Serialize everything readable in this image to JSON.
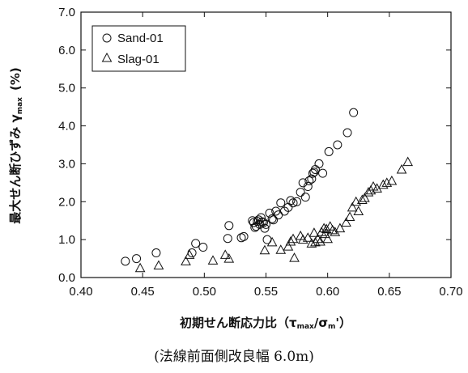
{
  "chart_data": {
    "type": "scatter",
    "xlabel": "初期せん断応力比（τmax/σm'）",
    "xlabel_parts": {
      "main": "初期せん断応力比（τ",
      "sub1": "max",
      "mid": "/σ",
      "sub2": "m",
      "end": "'）"
    },
    "ylabel": "最大せん断ひずみ γmax (%)",
    "ylabel_parts": {
      "main": "最大せん断ひずみ γ",
      "sub": "max",
      "unit": "(%)"
    },
    "xlim": [
      0.4,
      0.7
    ],
    "ylim": [
      0.0,
      7.0
    ],
    "xticks": [
      "0.40",
      "0.45",
      "0.50",
      "0.55",
      "0.60",
      "0.65",
      "0.70"
    ],
    "yticks": [
      "0.0",
      "1.0",
      "2.0",
      "3.0",
      "4.0",
      "5.0",
      "6.0",
      "7.0"
    ],
    "grid": false,
    "legend_position": "top-left",
    "series": [
      {
        "name": "Sand-01",
        "marker": "circle",
        "points": [
          [
            0.436,
            0.43
          ],
          [
            0.445,
            0.5
          ],
          [
            0.461,
            0.65
          ],
          [
            0.49,
            0.65
          ],
          [
            0.493,
            0.9
          ],
          [
            0.499,
            0.8
          ],
          [
            0.519,
            1.03
          ],
          [
            0.52,
            1.37
          ],
          [
            0.53,
            1.05
          ],
          [
            0.532,
            1.08
          ],
          [
            0.539,
            1.5
          ],
          [
            0.54,
            1.45
          ],
          [
            0.541,
            1.32
          ],
          [
            0.542,
            1.35
          ],
          [
            0.543,
            1.48
          ],
          [
            0.544,
            1.52
          ],
          [
            0.545,
            1.4
          ],
          [
            0.546,
            1.58
          ],
          [
            0.547,
            1.47
          ],
          [
            0.548,
            1.45
          ],
          [
            0.549,
            1.3
          ],
          [
            0.55,
            1.4
          ],
          [
            0.551,
            1.0
          ],
          [
            0.553,
            1.7
          ],
          [
            0.555,
            1.55
          ],
          [
            0.556,
            1.52
          ],
          [
            0.558,
            1.75
          ],
          [
            0.56,
            1.65
          ],
          [
            0.562,
            1.97
          ],
          [
            0.565,
            1.75
          ],
          [
            0.568,
            1.85
          ],
          [
            0.57,
            2.03
          ],
          [
            0.572,
            1.97
          ],
          [
            0.575,
            2.0
          ],
          [
            0.578,
            2.25
          ],
          [
            0.58,
            2.5
          ],
          [
            0.582,
            2.12
          ],
          [
            0.584,
            2.4
          ],
          [
            0.585,
            2.55
          ],
          [
            0.587,
            2.6
          ],
          [
            0.588,
            2.75
          ],
          [
            0.589,
            2.78
          ],
          [
            0.59,
            2.85
          ],
          [
            0.593,
            3.0
          ],
          [
            0.596,
            2.75
          ],
          [
            0.601,
            3.32
          ],
          [
            0.608,
            3.5
          ],
          [
            0.616,
            3.82
          ],
          [
            0.621,
            4.35
          ]
        ]
      },
      {
        "name": "Slag-01",
        "marker": "triangle",
        "points": [
          [
            0.448,
            0.25
          ],
          [
            0.463,
            0.32
          ],
          [
            0.485,
            0.43
          ],
          [
            0.488,
            0.6
          ],
          [
            0.507,
            0.45
          ],
          [
            0.517,
            0.6
          ],
          [
            0.52,
            0.5
          ],
          [
            0.549,
            0.72
          ],
          [
            0.555,
            0.93
          ],
          [
            0.562,
            0.73
          ],
          [
            0.568,
            0.82
          ],
          [
            0.57,
            0.95
          ],
          [
            0.572,
            1.02
          ],
          [
            0.573,
            0.52
          ],
          [
            0.578,
            1.1
          ],
          [
            0.58,
            1.0
          ],
          [
            0.584,
            1.05
          ],
          [
            0.587,
            0.9
          ],
          [
            0.589,
            1.18
          ],
          [
            0.59,
            0.93
          ],
          [
            0.592,
            1.02
          ],
          [
            0.594,
            0.95
          ],
          [
            0.595,
            1.2
          ],
          [
            0.597,
            1.3
          ],
          [
            0.598,
            1.15
          ],
          [
            0.599,
            1.28
          ],
          [
            0.6,
            1.02
          ],
          [
            0.602,
            1.35
          ],
          [
            0.604,
            1.25
          ],
          [
            0.606,
            1.2
          ],
          [
            0.61,
            1.3
          ],
          [
            0.615,
            1.45
          ],
          [
            0.618,
            1.6
          ],
          [
            0.62,
            1.85
          ],
          [
            0.623,
            2.0
          ],
          [
            0.625,
            1.75
          ],
          [
            0.628,
            2.05
          ],
          [
            0.63,
            2.1
          ],
          [
            0.633,
            2.25
          ],
          [
            0.635,
            2.3
          ],
          [
            0.637,
            2.4
          ],
          [
            0.64,
            2.35
          ],
          [
            0.645,
            2.45
          ],
          [
            0.648,
            2.5
          ],
          [
            0.652,
            2.55
          ],
          [
            0.66,
            2.85
          ],
          [
            0.665,
            3.05
          ]
        ]
      }
    ],
    "caption": "(法線前面側改良幅 6.0m)"
  }
}
